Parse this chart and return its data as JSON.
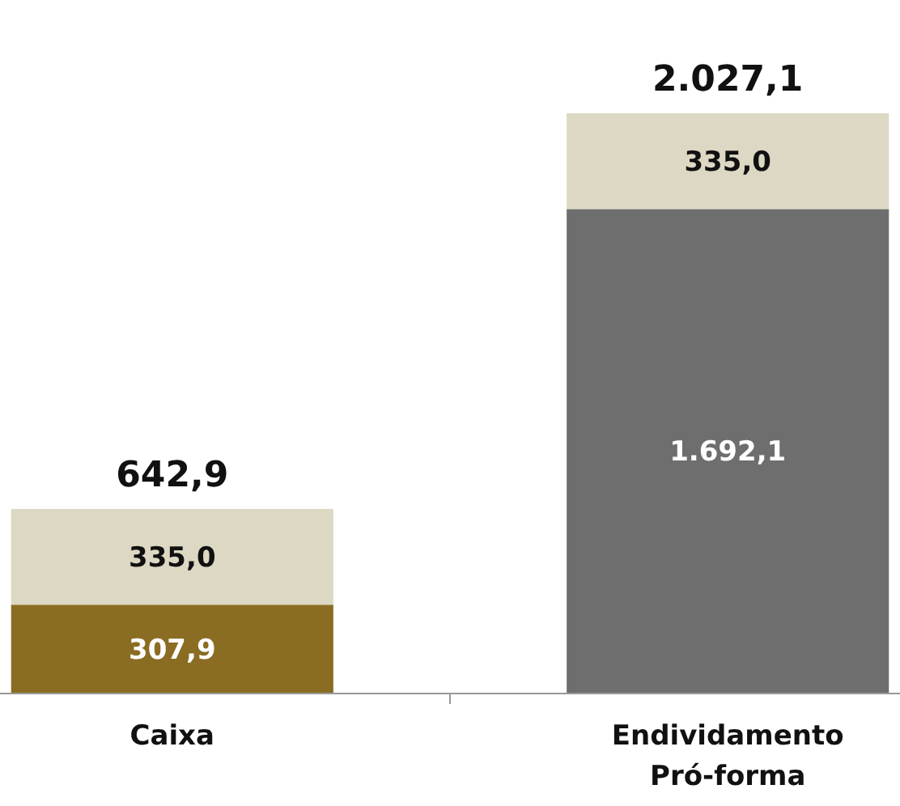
{
  "chart_data": {
    "type": "bar",
    "stacked": true,
    "categories": [
      "Caixa",
      "Endividamento Pró-forma"
    ],
    "series": [
      {
        "colors": [
          "#8a6d22",
          "#6e6e6e"
        ],
        "values": [
          307.9,
          1692.1
        ],
        "value_labels": [
          "307,9",
          "1.692,1"
        ]
      },
      {
        "color": "#ddd8c3",
        "values": [
          335.0,
          335.0
        ],
        "value_labels": [
          "335,0",
          "335,0"
        ]
      }
    ],
    "totals": [
      "642,9",
      "2.027,1"
    ]
  }
}
